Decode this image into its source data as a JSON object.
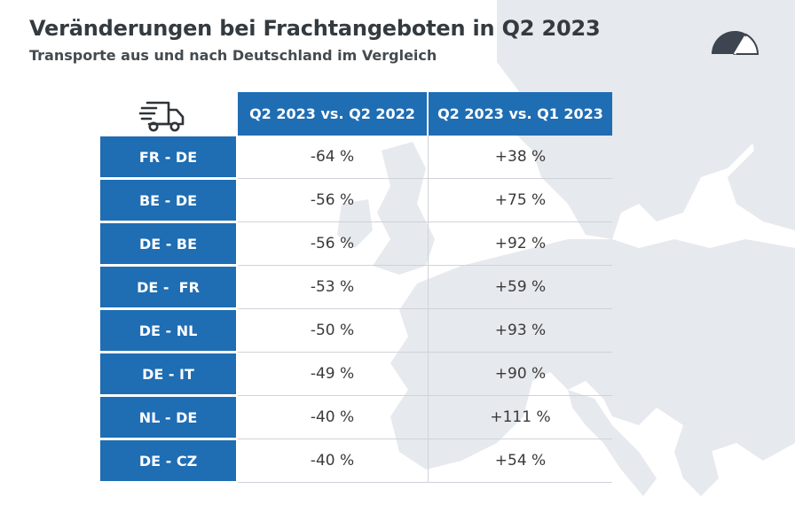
{
  "title": "Veränderungen bei Frachtangeboten in Q2 2023",
  "subtitle": "Transporte aus und nach Deutschland im Vergleich",
  "icons": {
    "truck": "truck-icon",
    "gauge": "gauge-icon"
  },
  "colors": {
    "header_blue": "#1f6db3",
    "text": "#333a40",
    "map": "#e6e9ed"
  },
  "chart_data": {
    "type": "table",
    "columns": [
      "Q2 2023 vs. Q2 2022",
      "Q2 2023 vs. Q1 2023"
    ],
    "rows": [
      {
        "label": "FR - DE",
        "values": [
          "-64 %",
          "+38 %"
        ]
      },
      {
        "label": "BE - DE",
        "values": [
          "-56 %",
          "+75 %"
        ]
      },
      {
        "label": "DE - BE",
        "values": [
          "-56 %",
          "+92 %"
        ]
      },
      {
        "label": "DE -  FR",
        "values": [
          "-53 %",
          "+59 %"
        ]
      },
      {
        "label": "DE - NL",
        "values": [
          "-50 %",
          "+93 %"
        ]
      },
      {
        "label": "DE - IT",
        "values": [
          "-49 %",
          "+90 %"
        ]
      },
      {
        "label": "NL - DE",
        "values": [
          "-40 %",
          "+111 %"
        ]
      },
      {
        "label": "DE - CZ",
        "values": [
          "-40 %",
          "+54 %"
        ]
      }
    ]
  }
}
